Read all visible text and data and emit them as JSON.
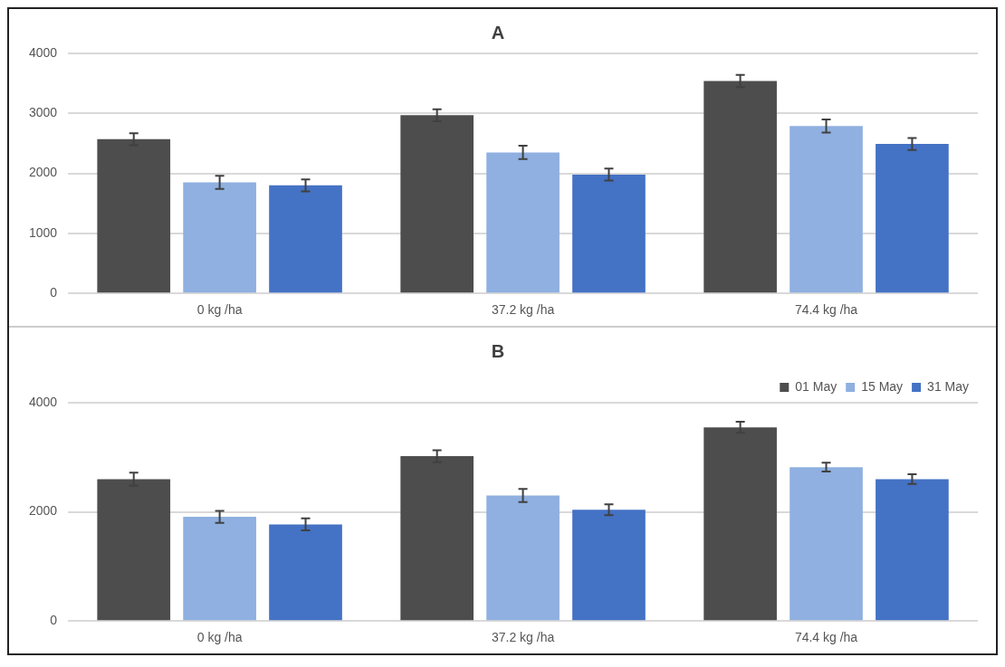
{
  "chart_data": [
    {
      "type": "bar",
      "title": "A",
      "categories": [
        "0 kg /ha",
        "37.2 kg /ha",
        "74.4 kg /ha"
      ],
      "series": [
        {
          "color": "#4d4d4d",
          "values": [
            2570,
            2970,
            3540
          ],
          "errors": [
            100,
            100,
            100
          ]
        },
        {
          "color": "#8fb0e0",
          "values": [
            1850,
            2350,
            2790
          ],
          "errors": [
            110,
            110,
            110
          ]
        },
        {
          "color": "#4472c4",
          "values": [
            1800,
            1980,
            2490
          ],
          "errors": [
            100,
            100,
            100
          ]
        }
      ],
      "ylim": [
        0,
        4000
      ],
      "yticks": [
        0,
        1000,
        2000,
        3000,
        4000
      ],
      "grid": "y",
      "legend": false
    },
    {
      "type": "bar",
      "title": "B",
      "categories": [
        "0 kg /ha",
        "37.2 kg /ha",
        "74.4 kg /ha"
      ],
      "series": [
        {
          "name": "01 May",
          "color": "#4d4d4d",
          "values": [
            2600,
            3020,
            3550
          ],
          "errors": [
            120,
            110,
            100
          ]
        },
        {
          "name": "15 May",
          "color": "#8fb0e0",
          "values": [
            1910,
            2300,
            2820
          ],
          "errors": [
            110,
            120,
            80
          ]
        },
        {
          "name": "31 May",
          "color": "#4472c4",
          "values": [
            1770,
            2040,
            2600
          ],
          "errors": [
            110,
            100,
            90
          ]
        }
      ],
      "ylim": [
        0,
        4000
      ],
      "yticks": [
        0,
        2000,
        4000
      ],
      "grid": "y",
      "legend": "top right"
    }
  ]
}
